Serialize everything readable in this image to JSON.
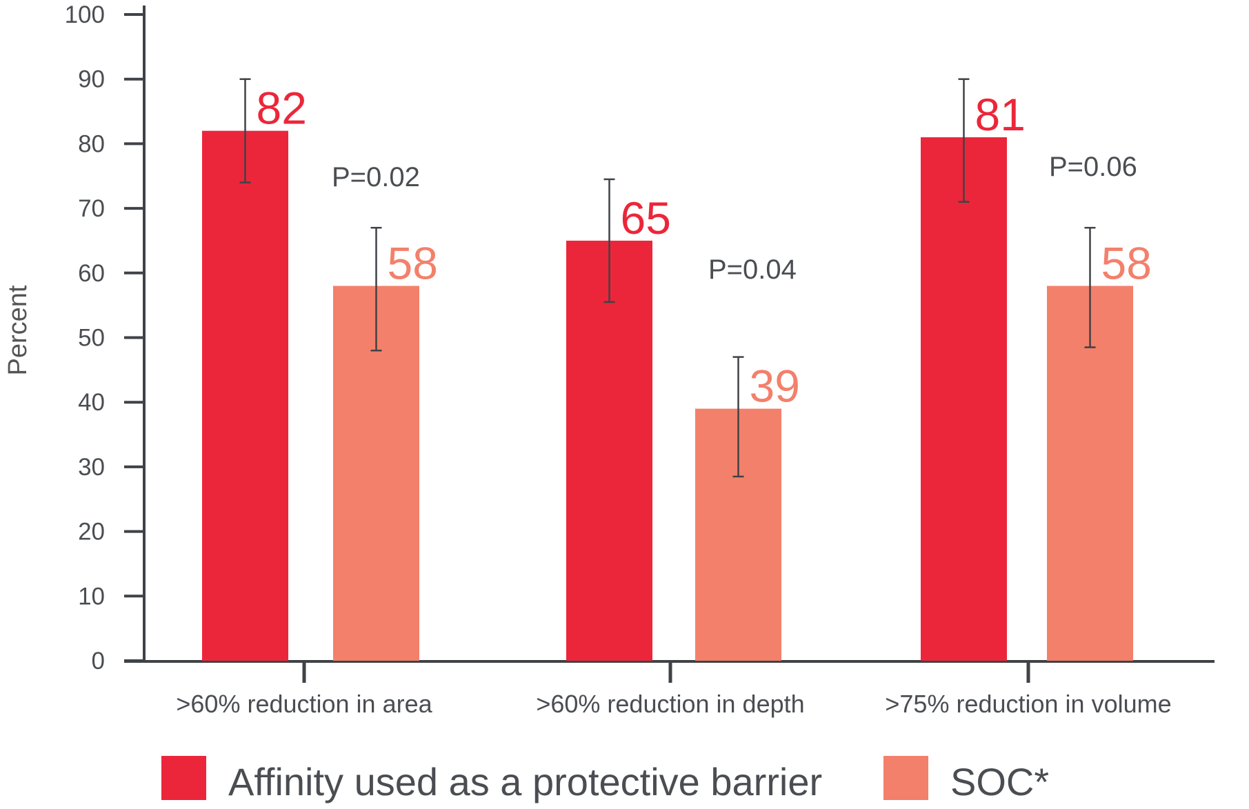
{
  "chart_data": {
    "type": "bar",
    "ylabel": "Percent",
    "xlabel": "",
    "ylim": [
      0,
      100
    ],
    "yticks": [
      0,
      10,
      20,
      30,
      40,
      50,
      60,
      70,
      80,
      90,
      100
    ],
    "grid": false,
    "legend_position": "bottom",
    "categories": [
      ">60% reduction in area",
      ">60% reduction in depth",
      ">75% reduction in volume"
    ],
    "series": [
      {
        "name": "Affinity used as a protective barrier",
        "color": "#EC263A",
        "values": [
          82,
          65,
          81
        ],
        "labels": [
          "82",
          "65",
          "81"
        ],
        "error_low": [
          74,
          55.5,
          71
        ],
        "error_high": [
          90,
          74.5,
          90
        ]
      },
      {
        "name": "SOC*",
        "color": "#F3806B",
        "values": [
          58,
          39,
          58
        ],
        "labels": [
          "58",
          "39",
          "58"
        ],
        "error_low": [
          48,
          28.5,
          48.5
        ],
        "error_high": [
          67,
          47,
          67
        ]
      }
    ],
    "annotations": [
      "P=0.02",
      "P=0.04",
      "P=0.06"
    ]
  }
}
